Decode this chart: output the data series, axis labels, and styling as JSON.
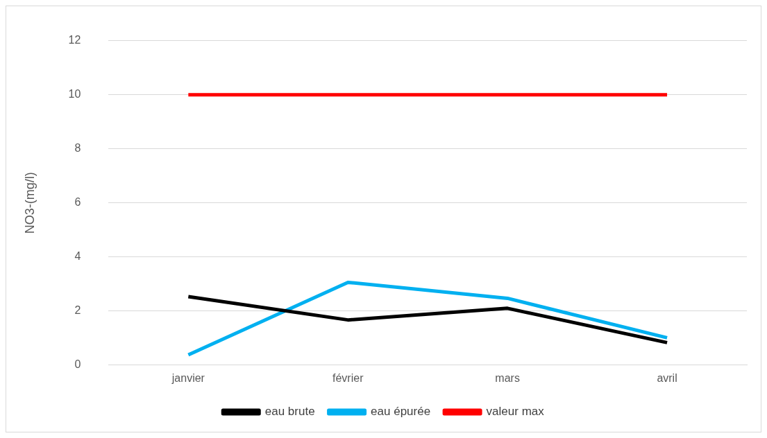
{
  "chart_data": {
    "type": "line",
    "ylabel": "NO3-(mg/l)",
    "categories": [
      "janvier",
      "février",
      "mars",
      "avril"
    ],
    "series": [
      {
        "name": "eau brute",
        "color": "#000000",
        "values": [
          2.53,
          1.67,
          2.1,
          0.83
        ]
      },
      {
        "name": "eau épurée",
        "color": "#00b0f0",
        "values": [
          0.38,
          3.06,
          2.47,
          1.01
        ]
      },
      {
        "name": "valeur max",
        "color": "#ff0000",
        "values": [
          10,
          10,
          10,
          10
        ]
      }
    ],
    "ylim": [
      0,
      12
    ],
    "yticks": [
      0,
      2,
      4,
      6,
      8,
      10,
      12
    ],
    "grid": "y",
    "legend": "bottom",
    "marker": "none",
    "line_style": "solid"
  }
}
